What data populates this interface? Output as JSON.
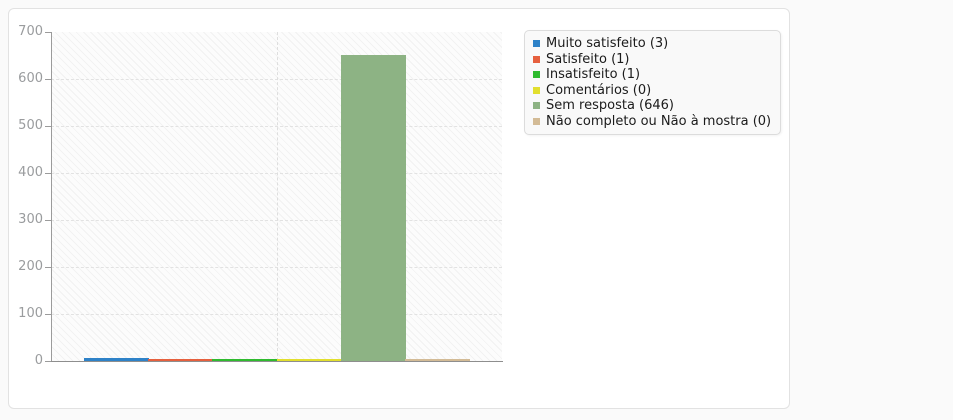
{
  "page": {
    "background": "#fafafa"
  },
  "card": {
    "background": "#ffffff",
    "border_color": "#e2e2e2"
  },
  "chart_data": {
    "type": "bar",
    "title": "",
    "xlabel": "",
    "ylabel": "",
    "categories": [
      "Muito satisfeito",
      "Satisfeito",
      "Insatisfeito",
      "Comentários",
      "Sem resposta",
      "Não completo ou Não à mostra"
    ],
    "values": [
      3,
      1,
      1,
      0,
      646,
      0
    ],
    "series_colors": [
      "#2e82c8",
      "#e6603e",
      "#2fbb2f",
      "#e2df2e",
      "#8db384",
      "#d3bb96"
    ],
    "ylim": [
      0,
      700
    ],
    "yticks": [
      0,
      100,
      200,
      300,
      400,
      500,
      600,
      700
    ],
    "grid": "horizontal-dashed, one vertical dashed center line",
    "legend_position": "top-right",
    "legend_entries": [
      {
        "label": "Muito satisfeito (3)",
        "color": "#2e82c8"
      },
      {
        "label": "Satisfeito (1)",
        "color": "#e6603e"
      },
      {
        "label": "Insatisfeito (1)",
        "color": "#2fbb2f"
      },
      {
        "label": "Comentários (0)",
        "color": "#e2df2e"
      },
      {
        "label": "Sem resposta (646)",
        "color": "#8db384"
      },
      {
        "label": "Não completo ou Não à mostra (0)",
        "color": "#d3bb96"
      }
    ]
  }
}
